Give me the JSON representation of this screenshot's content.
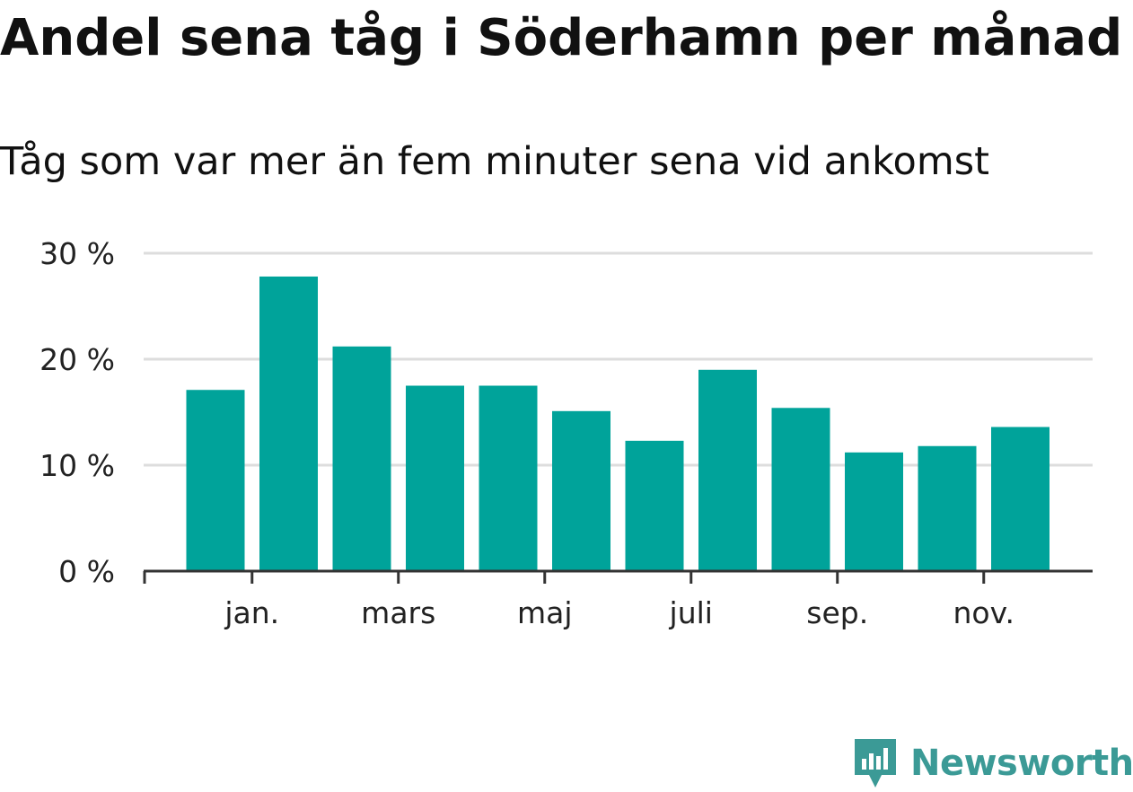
{
  "title": "Andel sena tåg i Söderhamn per månad",
  "subtitle": "Tåg som var mer än fem minuter sena vid ankomst",
  "brand": {
    "name": "Newsworthy",
    "logo_icon": "newsworthy-logo-icon",
    "color": "#3b9a96"
  },
  "colors": {
    "bar": "#00a39a",
    "grid": "#dddddd",
    "axis": "#333333",
    "text": "#111111"
  },
  "chart_data": {
    "type": "bar",
    "title": "Andel sena tåg i Söderhamn per månad",
    "subtitle": "Tåg som var mer än fem minuter sena vid ankomst",
    "xlabel": "",
    "ylabel": "",
    "ylim": [
      0,
      30
    ],
    "y_ticks": [
      0,
      10,
      20,
      30
    ],
    "y_tick_labels": [
      "0 %",
      "10 %",
      "20 %",
      "30 %"
    ],
    "y_unit": "%",
    "grid": "horizontal",
    "legend": "none",
    "x_tick_labels": [
      {
        "label": "jan.",
        "index": 1
      },
      {
        "label": "mars",
        "index": 3
      },
      {
        "label": "maj",
        "index": 5
      },
      {
        "label": "juli",
        "index": 7
      },
      {
        "label": "sep.",
        "index": 9
      },
      {
        "label": "nov.",
        "index": 11
      }
    ],
    "x_tick_at_start": true,
    "values": [
      17.1,
      27.8,
      21.2,
      17.5,
      17.5,
      15.1,
      12.3,
      19.0,
      15.4,
      11.2,
      11.8,
      13.6
    ]
  }
}
